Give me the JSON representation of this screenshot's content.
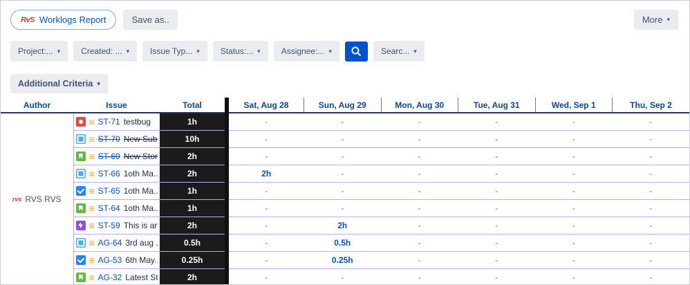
{
  "colors": {
    "link": "#0052cc",
    "header-blue": "#0747a6",
    "total-bg": "#1b1b1b",
    "strip": "#0e1012",
    "row-line": "#b9a8f4",
    "button-bg": "#ebecf0",
    "button-text": "#42526e",
    "prio-orange": "#ff991f",
    "bug": "#e5493a",
    "story": "#63ba3c",
    "task": "#2684ff",
    "subtask": "#4bade8",
    "epic": "#904ee2"
  },
  "header": {
    "logo_text": "RvS",
    "report_title": "Worklogs Report",
    "save_as_label": "Save as..",
    "more_label": "More"
  },
  "filters": {
    "left": [
      {
        "name": "project",
        "label": "Project:..."
      },
      {
        "name": "created",
        "label": "Created: ..."
      },
      {
        "name": "issue-type",
        "label": "Issue Typ..."
      },
      {
        "name": "status",
        "label": "Status:..."
      },
      {
        "name": "assignee",
        "label": "Assignee:..."
      }
    ],
    "right": [
      {
        "name": "search-text",
        "label": "Searc..."
      }
    ]
  },
  "additional_criteria": {
    "label": "Additional Criteria"
  },
  "table": {
    "columns": [
      "Author",
      "Issue",
      "Total",
      "Sat, Aug 28",
      "Sun, Aug 29",
      "Mon, Aug 30",
      "Tue, Aug 31",
      "Wed, Sep 1",
      "Thu, Sep 2"
    ],
    "author": "RVS RVS",
    "author_logo": "rvs",
    "rows": [
      {
        "type": "bug",
        "key": "ST-71",
        "summary": "testbug",
        "struck": false,
        "total": "1h",
        "days": [
          "-",
          "-",
          "-",
          "-",
          "-",
          "-"
        ]
      },
      {
        "type": "subtask",
        "key": "ST-70",
        "summary": "New Sub...",
        "struck": true,
        "total": "10h",
        "days": [
          "-",
          "-",
          "-",
          "-",
          "-",
          "-"
        ]
      },
      {
        "type": "story",
        "key": "ST-69",
        "summary": "New Story",
        "struck": true,
        "total": "2h",
        "days": [
          "-",
          "-",
          "-",
          "-",
          "-",
          "-"
        ]
      },
      {
        "type": "subtask",
        "key": "ST-66",
        "summary": "1oth Ma...",
        "struck": false,
        "total": "2h",
        "days": [
          "2h",
          "-",
          "-",
          "-",
          "-",
          "-"
        ]
      },
      {
        "type": "task",
        "key": "ST-65",
        "summary": "1oth Ma...",
        "struck": false,
        "total": "1h",
        "days": [
          "-",
          "-",
          "-",
          "-",
          "-",
          "-"
        ]
      },
      {
        "type": "story",
        "key": "ST-64",
        "summary": "1oth Ma...",
        "struck": false,
        "total": "1h",
        "days": [
          "-",
          "-",
          "-",
          "-",
          "-",
          "-"
        ]
      },
      {
        "type": "epic",
        "key": "ST-59",
        "summary": "This is an...",
        "struck": false,
        "total": "2h",
        "days": [
          "-",
          "2h",
          "-",
          "-",
          "-",
          "-"
        ]
      },
      {
        "type": "subtask",
        "key": "AG-64",
        "summary": "3rd aug ..",
        "struck": false,
        "total": "0.5h",
        "days": [
          "-",
          "0.5h",
          "-",
          "-",
          "-",
          "-"
        ]
      },
      {
        "type": "task",
        "key": "AG-53",
        "summary": "6th May...",
        "struck": false,
        "total": "0.25h",
        "days": [
          "-",
          "0.25h",
          "-",
          "-",
          "-",
          "-"
        ]
      },
      {
        "type": "story",
        "key": "AG-32",
        "summary": "Latest St...",
        "struck": false,
        "total": "2h",
        "days": [
          "-",
          "-",
          "-",
          "-",
          "-",
          "-"
        ]
      }
    ]
  }
}
